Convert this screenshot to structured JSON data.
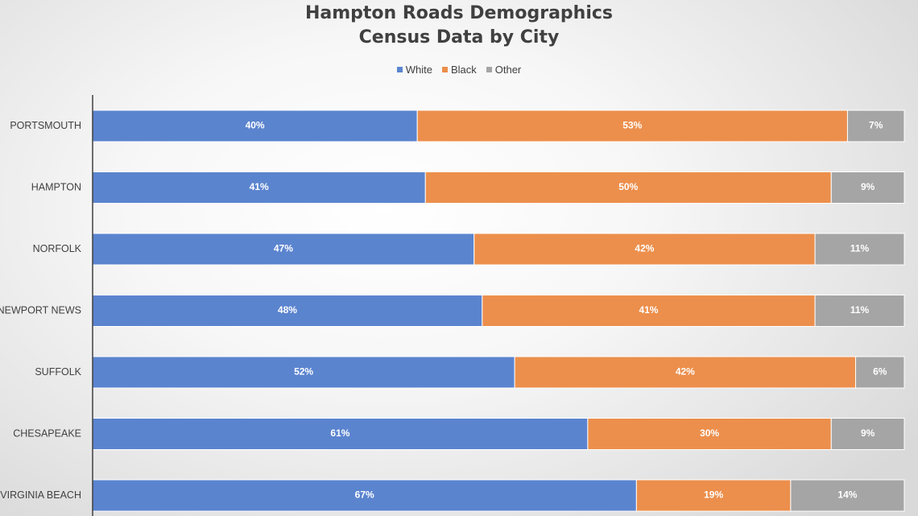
{
  "chart": {
    "title_line1": "Hampton Roads Demographics",
    "title_line2": "Census Data by City"
  },
  "chart_data": {
    "type": "bar",
    "orientation": "horizontal",
    "stacked": true,
    "title": "Hampton Roads Demographics Census Data by City",
    "categories": [
      "PORTSMOUTH",
      "HAMPTON",
      "NORFOLK",
      "NEWPORT NEWS",
      "SUFFOLK",
      "CHESAPEAKE",
      "VIRGINIA BEACH"
    ],
    "series": [
      {
        "name": "White",
        "color": "#5b84cf",
        "values": [
          40,
          41,
          47,
          48,
          52,
          61,
          67
        ],
        "labels": [
          "40%",
          "41%",
          "47%",
          "48%",
          "52%",
          "61%",
          "67%"
        ]
      },
      {
        "name": "Black",
        "color": "#ec8f4c",
        "values": [
          53,
          50,
          42,
          41,
          42,
          30,
          19
        ],
        "labels": [
          "53%",
          "50%",
          "42%",
          "41%",
          "42%",
          "30%",
          "19%"
        ]
      },
      {
        "name": "Other",
        "color": "#a5a5a5",
        "values": [
          7,
          9,
          11,
          11,
          6,
          9,
          14
        ],
        "labels": [
          "7%",
          "9%",
          "11%",
          "11%",
          "6%",
          "9%",
          "14%"
        ]
      }
    ],
    "xlim": [
      0,
      100
    ],
    "xlabel": "",
    "ylabel": "",
    "grid": false,
    "legend_position": "top"
  }
}
